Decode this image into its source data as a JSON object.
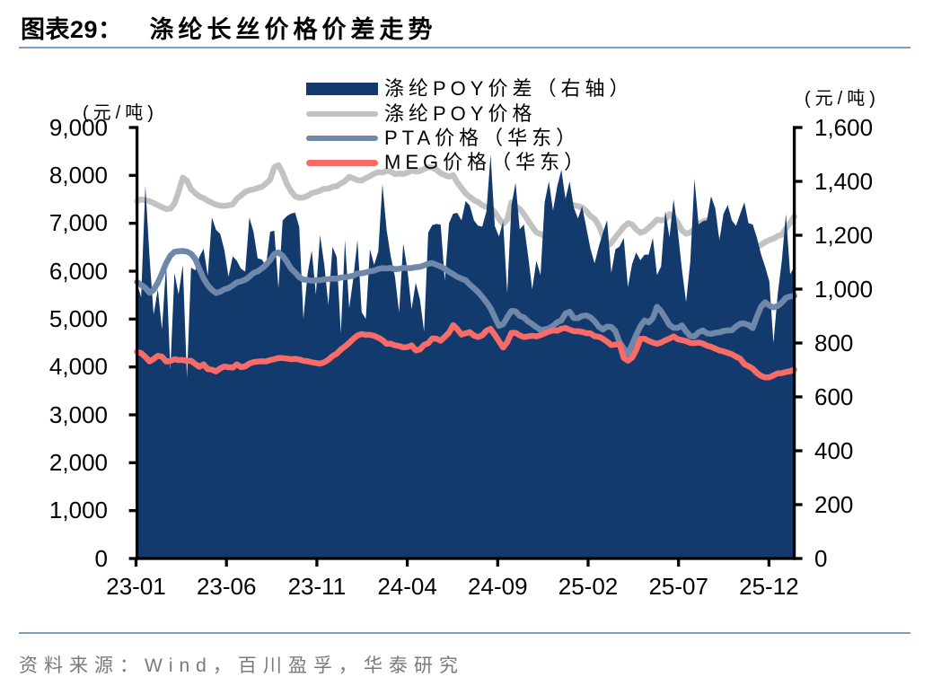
{
  "header": {
    "label": "图表29：",
    "title": "涤纶长丝价格价差走势"
  },
  "footer": {
    "source": "资料来源：Wind，百川盈孚，华泰研究"
  },
  "colors": {
    "area_navy": "#123a6c",
    "line_gray": "#c2c2c2",
    "line_blue": "#6f88aa",
    "line_red": "#f96b66",
    "axis_black": "#000000",
    "rule_blue": "#7e9cc0",
    "source_gray": "#7f7f7f",
    "background": "#ffffff"
  },
  "chart_data": {
    "type": "area+line",
    "title": "涤纶长丝价格价差走势",
    "x_dates": [
      "23-01-06",
      "23-01-13",
      "23-01-20",
      "23-01-27",
      "23-02-03",
      "23-02-10",
      "23-02-17",
      "23-02-24",
      "23-03-03",
      "23-03-10",
      "23-03-17",
      "23-03-24",
      "23-03-31",
      "23-04-07",
      "23-04-14",
      "23-04-21",
      "23-04-28",
      "23-05-05",
      "23-05-12",
      "23-05-19",
      "23-05-26",
      "23-06-02",
      "23-06-09",
      "23-06-16",
      "23-06-23",
      "23-06-30",
      "23-07-07",
      "23-07-14",
      "23-07-21",
      "23-07-28",
      "23-08-04",
      "23-08-11",
      "23-08-18",
      "23-08-25",
      "23-09-01",
      "23-09-08",
      "23-09-15",
      "23-09-22",
      "23-09-29",
      "23-10-06",
      "23-10-13",
      "23-10-20",
      "23-10-27",
      "23-11-03",
      "23-11-10",
      "23-11-17",
      "23-11-24",
      "23-12-01",
      "23-12-08",
      "23-12-15",
      "23-12-22",
      "23-12-29",
      "24-01-05",
      "24-01-12",
      "24-01-19",
      "24-01-26",
      "24-02-02",
      "24-02-09",
      "24-02-16",
      "24-02-23",
      "24-03-01",
      "24-03-08",
      "24-03-15",
      "24-03-22",
      "24-03-29",
      "24-04-05",
      "24-04-12",
      "24-04-19",
      "24-04-26",
      "24-05-03",
      "24-05-10",
      "24-05-17",
      "24-05-24",
      "24-05-31",
      "24-06-07",
      "24-06-14",
      "24-06-21",
      "24-06-28",
      "24-07-05",
      "24-07-12",
      "24-07-19",
      "24-07-26",
      "24-08-02",
      "24-08-09",
      "24-08-16",
      "24-08-23",
      "24-08-30",
      "24-09-06",
      "24-09-13",
      "24-09-20",
      "24-09-27",
      "24-10-04",
      "24-10-11",
      "24-10-18",
      "24-10-25",
      "24-11-01",
      "24-11-08",
      "24-11-15",
      "24-11-22",
      "24-11-29",
      "24-12-06",
      "24-12-13",
      "24-12-20",
      "24-12-27",
      "25-01-03",
      "25-01-10",
      "25-01-17",
      "25-01-24",
      "25-01-31",
      "25-02-07",
      "25-02-14",
      "25-02-21",
      "25-02-28",
      "25-03-07",
      "25-03-14",
      "25-03-21",
      "25-03-28",
      "25-04-04",
      "25-04-11",
      "25-04-18",
      "25-04-25",
      "25-05-02",
      "25-05-09",
      "25-05-16",
      "25-05-23",
      "25-05-30",
      "25-06-06",
      "25-06-13",
      "25-06-20",
      "25-06-27",
      "25-07-04",
      "25-07-11",
      "25-07-18",
      "25-07-25",
      "25-08-01",
      "25-08-08",
      "25-08-15",
      "25-08-22",
      "25-08-29",
      "25-09-05",
      "25-09-12",
      "25-09-19",
      "25-09-26",
      "25-10-03",
      "25-10-10",
      "25-10-17",
      "25-10-24",
      "25-10-31",
      "25-11-07",
      "25-11-14",
      "25-11-21",
      "25-11-28",
      "25-12-05",
      "25-12-12",
      "25-12-19",
      "25-12-26",
      "26-01-02",
      "26-01-09",
      "26-01-16"
    ],
    "series": [
      {
        "name": "涤纶POY价差（右轴）",
        "type": "area",
        "axis": "right",
        "color": "#123a6c",
        "values": [
          1020,
          970,
          1385,
          1120,
          905,
          1000,
          850,
          1090,
          700,
          1060,
          980,
          1090,
          670,
          1080,
          1070,
          1120,
          1150,
          1050,
          1266,
          1220,
          1205,
          1145,
          1046,
          1122,
          1105,
          1076,
          1065,
          1266,
          1213,
          1114,
          1110,
          1085,
          1213,
          1217,
          1003,
          1255,
          1271,
          1280,
          1284,
          1230,
          890,
          1056,
          1144,
          980,
          1201,
          1092,
          941,
          1157,
          1119,
          836,
          1182,
          929,
          1040,
          1182,
          914,
          889,
          1148,
          1090,
          1140,
          1390,
          1219,
          1121,
          1048,
          914,
          1170,
          1073,
          926,
          1024,
          963,
          843,
          1210,
          1238,
          1242,
          1239,
          1031,
          1245,
          1280,
          1283,
          1255,
          1327,
          1310,
          1255,
          1235,
          1232,
          1290,
          1500,
          1235,
          1195,
          1252,
          985,
          1310,
          1395,
          1222,
          1240,
          1125,
          1000,
          1105,
          1052,
          1323,
          1400,
          1292,
          1380,
          1443,
          1335,
          1400,
          1302,
          1262,
          1308,
          1228,
          1150,
          1096,
          1158,
          1210,
          1256,
          1061,
          1148,
          1158,
          1190,
          1007,
          1092,
          1136,
          1107,
          1128,
          1128,
          1190,
          1052,
          1085,
          1290,
          1192,
          1334,
          1215,
          1072,
          952,
          1102,
          1410,
          1240,
          1252,
          1256,
          1345,
          1300,
          1180,
          1280,
          1312,
          1255,
          1235,
          1280,
          1322,
          1245,
          1240,
          1192,
          1130,
          1083,
          1029,
          800,
          980,
          1105,
          1279,
          1055,
          1083
        ]
      },
      {
        "name": "涤纶POY价格",
        "type": "line",
        "axis": "left",
        "color": "#c2c2c2",
        "values": [
          7458,
          7500,
          7478,
          7460,
          7423,
          7377,
          7337,
          7299,
          7305,
          7411,
          7662,
          7953,
          7889,
          7710,
          7630,
          7560,
          7524,
          7471,
          7426,
          7390,
          7368,
          7364,
          7373,
          7397,
          7513,
          7581,
          7653,
          7690,
          7709,
          7737,
          7759,
          7830,
          7912,
          8174,
          8214,
          8050,
          7823,
          7674,
          7564,
          7532,
          7538,
          7574,
          7629,
          7650,
          7681,
          7721,
          7724,
          7760,
          7773,
          7831,
          7879,
          7970,
          7937,
          7902,
          7891,
          7942,
          7984,
          8036,
          8067,
          8056,
          8097,
          8077,
          8026,
          8038,
          8031,
          8055,
          8104,
          8082,
          8088,
          8135,
          8172,
          8160,
          8116,
          8044,
          8004,
          7975,
          8003,
          7853,
          7734,
          7624,
          7553,
          7483,
          7441,
          7376,
          7341,
          7315,
          7234,
          7097,
          6986,
          7077,
          7437,
          7355,
          7301,
          7191,
          7058,
          6926,
          6812,
          6776,
          6731,
          6799,
          6935,
          7158,
          7260,
          7340,
          7362,
          7377,
          7357,
          7329,
          7255,
          7150,
          7092,
          6952,
          6737,
          6532,
          6590,
          6710,
          6813,
          6927,
          7000,
          6977,
          6871,
          6802,
          6833,
          6904,
          6984,
          7077,
          7061,
          7078,
          7190,
          7128,
          7007,
          6849,
          6781,
          6809,
          6884,
          6977,
          7037,
          7063,
          6964,
          6742,
          6633,
          6595,
          6621,
          6617,
          6582,
          6597,
          6550,
          6504,
          6460,
          6497,
          6549,
          6608,
          6650,
          6678,
          6733,
          6759,
          6886,
          7013,
          7141
        ]
      },
      {
        "name": "PTA价格（华东）",
        "type": "line",
        "axis": "left",
        "color": "#6f88aa",
        "values": [
          5775,
          5711,
          5654,
          5548,
          5610,
          5760,
          5952,
          6167,
          6323,
          6404,
          6416,
          6422,
          6408,
          6362,
          6256,
          6042,
          5851,
          5705,
          5610,
          5544,
          5573,
          5621,
          5646,
          5704,
          5765,
          5789,
          5820,
          5884,
          5963,
          5996,
          6059,
          6129,
          6232,
          6360,
          6391,
          6320,
          6200,
          6058,
          5971,
          5875,
          5824,
          5816,
          5801,
          5811,
          5812,
          5826,
          5835,
          5845,
          5843,
          5867,
          5871,
          5889,
          5905,
          5953,
          5954,
          5974,
          5999,
          6012,
          6045,
          6063,
          6057,
          6067,
          6042,
          6049,
          6070,
          6064,
          6066,
          6083,
          6092,
          6120,
          6155,
          6169,
          6131,
          6098,
          6048,
          5987,
          5939,
          5881,
          5842,
          5810,
          5719,
          5643,
          5563,
          5463,
          5351,
          5223,
          5039,
          4856,
          4892,
          5036,
          5172,
          5164,
          5065,
          5035,
          4950,
          4896,
          4829,
          4774,
          4785,
          4804,
          4858,
          4933,
          4971,
          5117,
          5153,
          5020,
          5018,
          5067,
          5075,
          5037,
          4955,
          4840,
          4784,
          4843,
          4836,
          4749,
          4516,
          4383,
          4277,
          4465,
          4665,
          4851,
          4970,
          4929,
          5019,
          5256,
          5163,
          5024,
          4879,
          4816,
          4817,
          4868,
          4741,
          4644,
          4637,
          4721,
          4762,
          4702,
          4691,
          4712,
          4724,
          4752,
          4762,
          4767,
          4844,
          4904,
          4906,
          4877,
          4811,
          5047,
          5257,
          5352,
          5281,
          5245,
          5270,
          5343,
          5443,
          5471,
          5487
        ]
      },
      {
        "name": "MEG价格（华东）",
        "type": "line",
        "axis": "left",
        "color": "#f96b66",
        "values": [
          4317,
          4288,
          4212,
          4116,
          4169,
          4231,
          4215,
          4113,
          4125,
          4161,
          4144,
          4144,
          4126,
          4129,
          4061,
          4003,
          4054,
          3955,
          3943,
          3908,
          3973,
          4009,
          3994,
          3986,
          4053,
          3995,
          4013,
          4071,
          4101,
          4112,
          4117,
          4115,
          4144,
          4162,
          4187,
          4185,
          4176,
          4160,
          4170,
          4155,
          4129,
          4120,
          4097,
          4083,
          4069,
          4097,
          4150,
          4226,
          4277,
          4364,
          4427,
          4503,
          4586,
          4657,
          4685,
          4671,
          4670,
          4650,
          4610,
          4562,
          4484,
          4485,
          4451,
          4437,
          4408,
          4413,
          4449,
          4347,
          4365,
          4460,
          4496,
          4595,
          4588,
          4548,
          4629,
          4716,
          4874,
          4788,
          4674,
          4703,
          4727,
          4654,
          4626,
          4659,
          4759,
          4797,
          4671,
          4538,
          4406,
          4516,
          4711,
          4714,
          4659,
          4624,
          4636,
          4652,
          4636,
          4664,
          4700,
          4738,
          4764,
          4755,
          4798,
          4814,
          4780,
          4746,
          4746,
          4733,
          4706,
          4700,
          4643,
          4630,
          4588,
          4529,
          4457,
          4469,
          4480,
          4189,
          4131,
          4192,
          4352,
          4587,
          4590,
          4543,
          4510,
          4484,
          4512,
          4556,
          4592,
          4636,
          4578,
          4560,
          4539,
          4502,
          4498,
          4510,
          4488,
          4443,
          4422,
          4382,
          4347,
          4323,
          4294,
          4265,
          4215,
          4171,
          4057,
          4016,
          3964,
          3875,
          3814,
          3782,
          3784,
          3823,
          3868,
          3870,
          3894,
          3910,
          3943
        ]
      }
    ],
    "left_axis": {
      "unit": "(元/吨)",
      "min": 0,
      "max": 9000,
      "tick_step": 1000,
      "tick_labels": [
        "9,000",
        "8,000",
        "7,000",
        "6,000",
        "5,000",
        "4,000",
        "3,000",
        "2,000",
        "1,000",
        "0"
      ]
    },
    "right_axis": {
      "unit": "(元/吨)",
      "min": 0,
      "max": 1600,
      "tick_step": 200,
      "tick_labels": [
        "1,600",
        "1,400",
        "1,200",
        "1,000",
        "800",
        "600",
        "400",
        "200",
        "0"
      ]
    },
    "x_axis": {
      "tick_labels": [
        "23-01",
        "23-06",
        "23-11",
        "24-04",
        "24-09",
        "25-02",
        "25-07",
        "25-12"
      ],
      "tick_month_offsets": [
        0,
        5,
        10,
        15,
        20,
        25,
        30,
        35
      ],
      "months_total": 36.4
    },
    "legend_position": "top-center",
    "grid": "off"
  }
}
